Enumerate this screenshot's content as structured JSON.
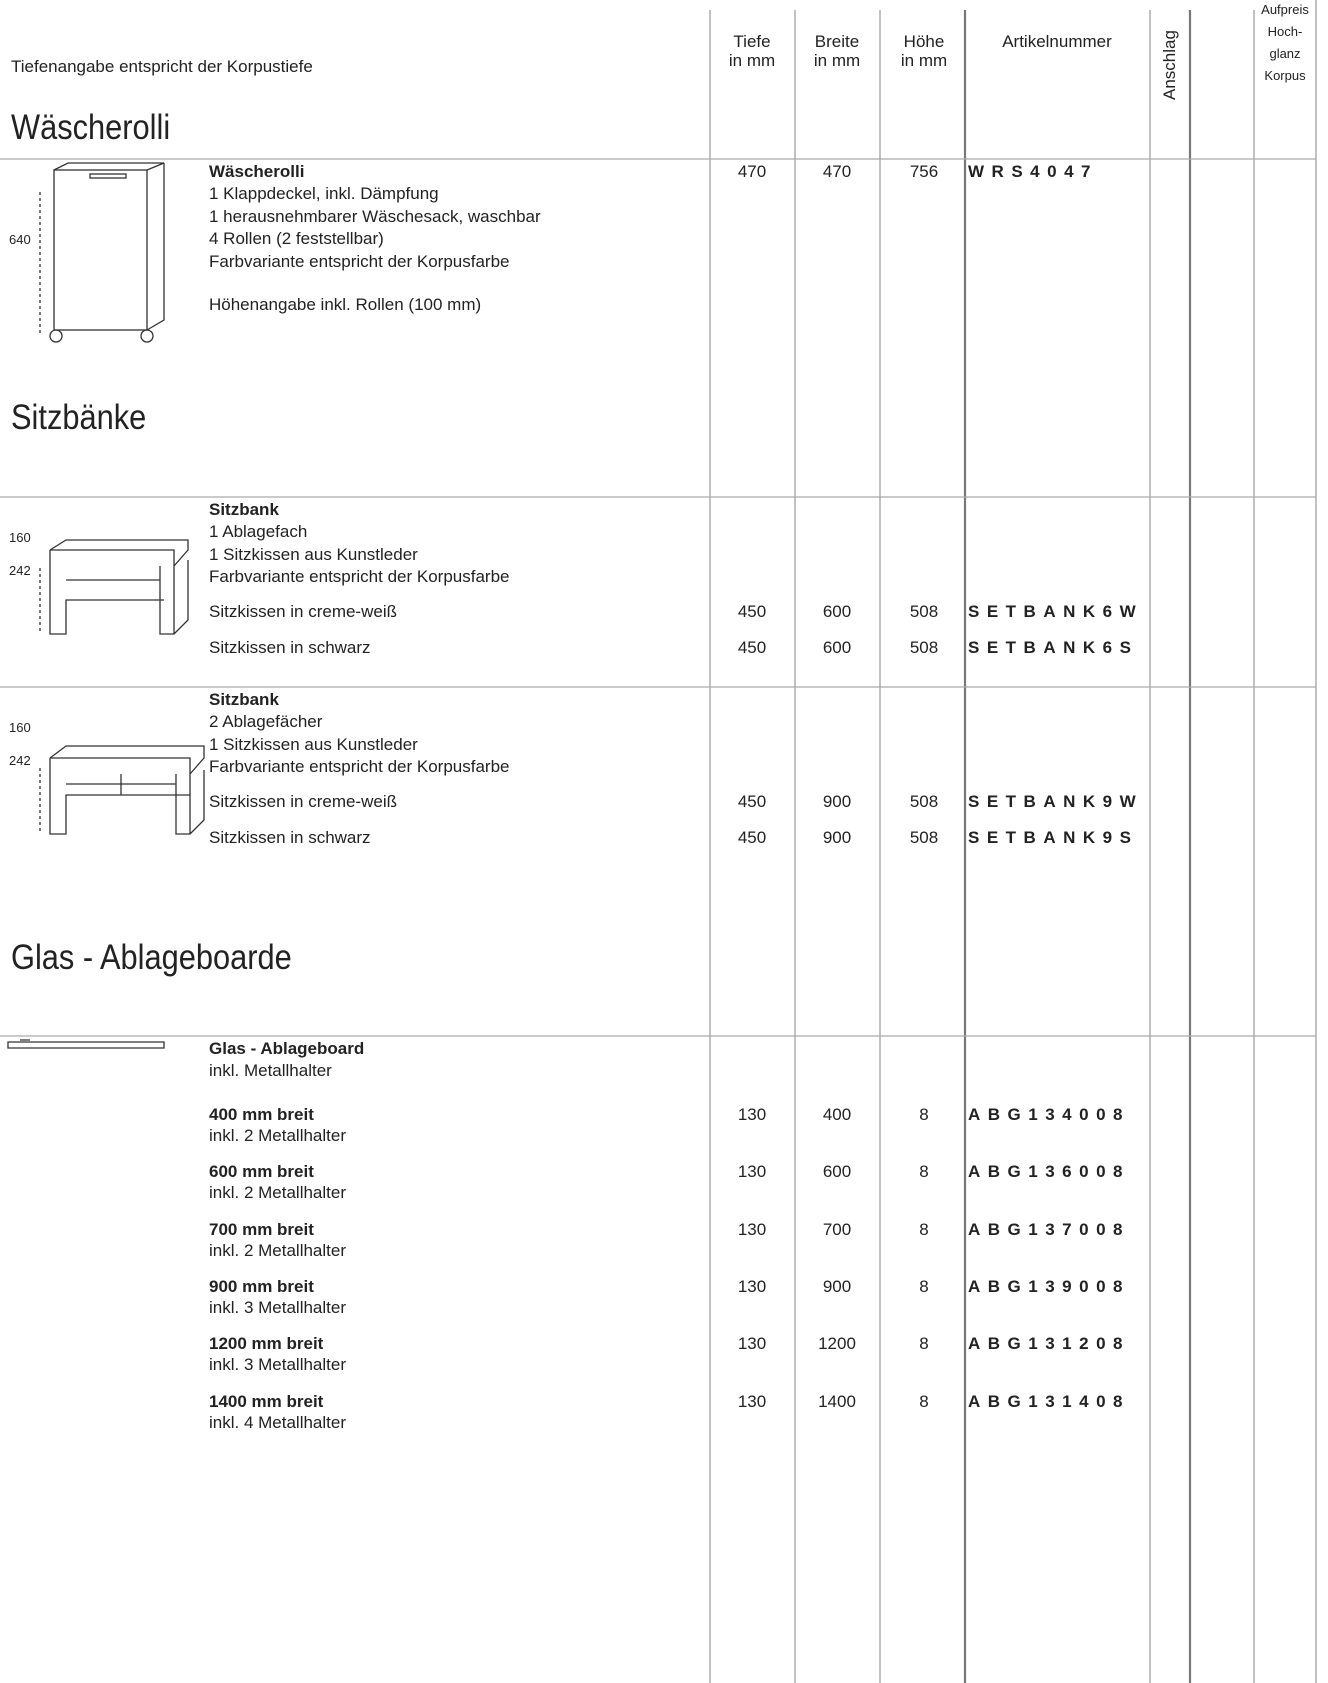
{
  "header": {
    "note": "Tiefenangabe entspricht der Korpustiefe",
    "columns": [
      [
        "Tiefe",
        "in mm"
      ],
      [
        "Breite",
        "in mm"
      ],
      [
        "Höhe",
        "in mm"
      ],
      [
        "Artikelnummer"
      ],
      [
        "Anschlag"
      ],
      [
        "Aufpreis",
        "Hoch-",
        "glanz",
        "Korpus"
      ]
    ]
  },
  "sections": [
    {
      "title": "Wäscherolli",
      "products": [
        {
          "dims": [
            "640"
          ],
          "name": "Wäscherolli",
          "lines": [
            "1 Klappdeckel, inkl. Dämpfung",
            "1 herausnehmbarer Wäschesack, waschbar",
            "4 Rollen (2 feststellbar)",
            "Farbvariante entspricht der Korpusfarbe"
          ],
          "note": "Höhenangabe inkl. Rollen (100 mm)",
          "tiefe": 470,
          "breite": 470,
          "hoehe": 756,
          "artikel": "WRS4047"
        }
      ]
    },
    {
      "title": "Sitzbänke",
      "products": [
        {
          "dims": [
            "160",
            "242"
          ],
          "name": "Sitzbank",
          "lines": [
            "1 Ablagefach",
            "1 Sitzkissen aus Kunstleder",
            "Farbvariante entspricht der Korpusfarbe"
          ],
          "rows": [
            {
              "label": "Sitzkissen in creme-weiß",
              "tiefe": 450,
              "breite": 600,
              "hoehe": 508,
              "artikel": "SETBANK6W"
            },
            {
              "label": "Sitzkissen in schwarz",
              "tiefe": 450,
              "breite": 600,
              "hoehe": 508,
              "artikel": "SETBANK6S"
            }
          ]
        },
        {
          "dims": [
            "160",
            "242"
          ],
          "name": "Sitzbank",
          "lines": [
            "2 Ablagefächer",
            "1 Sitzkissen aus Kunstleder",
            "Farbvariante entspricht der Korpusfarbe"
          ],
          "rows": [
            {
              "label": "Sitzkissen in creme-weiß",
              "tiefe": 450,
              "breite": 900,
              "hoehe": 508,
              "artikel": "SETBANK9W"
            },
            {
              "label": "Sitzkissen in schwarz",
              "tiefe": 450,
              "breite": 900,
              "hoehe": 508,
              "artikel": "SETBANK9S"
            }
          ]
        }
      ]
    },
    {
      "title": "Glas - Ablageboarde",
      "products": [
        {
          "name": "Glas - Ablageboard",
          "lines": [
            "inkl. Metallhalter"
          ],
          "variants": [
            {
              "label": "400 mm breit",
              "sub": "inkl. 2 Metallhalter",
              "tiefe": 130,
              "breite": 400,
              "hoehe": 8,
              "artikel": "ABG134008"
            },
            {
              "label": "600 mm breit",
              "sub": "inkl. 2 Metallhalter",
              "tiefe": 130,
              "breite": 600,
              "hoehe": 8,
              "artikel": "ABG136008"
            },
            {
              "label": "700 mm breit",
              "sub": "inkl. 2 Metallhalter",
              "tiefe": 130,
              "breite": 700,
              "hoehe": 8,
              "artikel": "ABG137008"
            },
            {
              "label": "900 mm breit",
              "sub": "inkl. 3 Metallhalter",
              "tiefe": 130,
              "breite": 900,
              "hoehe": 8,
              "artikel": "ABG139008"
            },
            {
              "label": "1200 mm breit",
              "sub": "inkl. 3 Metallhalter",
              "tiefe": 130,
              "breite": 1200,
              "hoehe": 8,
              "artikel": "ABG131208"
            },
            {
              "label": "1400 mm breit",
              "sub": "inkl. 4 Metallhalter",
              "tiefe": 130,
              "breite": 1400,
              "hoehe": 8,
              "artikel": "ABG131408"
            }
          ]
        }
      ]
    }
  ]
}
